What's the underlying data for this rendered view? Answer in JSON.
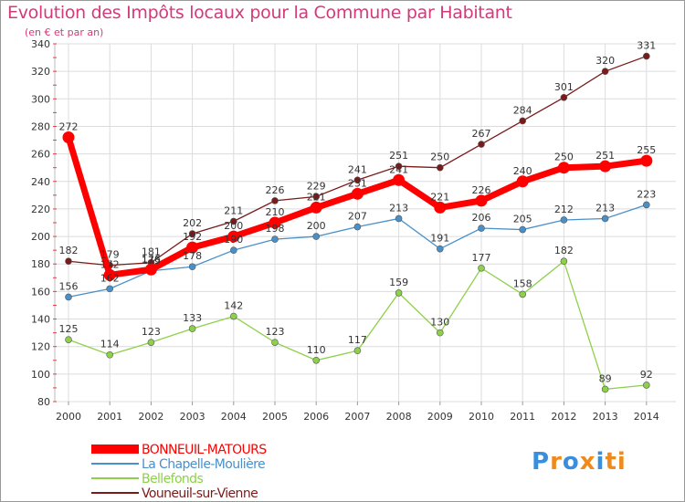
{
  "header": {
    "title": "Evolution des Impôts locaux pour la Commune par Habitant",
    "subtitle": "(en € et par an)"
  },
  "logo": {
    "text": "Proxiti",
    "letters": [
      "P",
      "r",
      "o",
      "x",
      "i",
      "t",
      "i"
    ],
    "colors": [
      "#3a8ede",
      "#f08a1c",
      "#3a8ede",
      "#f08a1c",
      "#3a8ede",
      "#f08a1c",
      "#f08a1c"
    ]
  },
  "chart_data": {
    "type": "line",
    "title": "Evolution des Impôts locaux pour la Commune par Habitant",
    "subtitle": "(en € et par an)",
    "x": [
      "2000",
      "2001",
      "2002",
      "2003",
      "2004",
      "2005",
      "2006",
      "2007",
      "2008",
      "2009",
      "2010",
      "2011",
      "2012",
      "2013",
      "2014"
    ],
    "ylim": [
      80,
      340
    ],
    "yticks": [
      80,
      100,
      120,
      140,
      160,
      180,
      200,
      220,
      240,
      260,
      280,
      300,
      320,
      340
    ],
    "grid": true,
    "legend": "bottom-left",
    "series": [
      {
        "name": "BONNEUIL-MATOURS",
        "color": "#ff0000",
        "values": [
          272,
          172,
          176,
          192,
          200,
          210,
          221,
          231,
          241,
          221,
          226,
          240,
          250,
          251,
          255
        ]
      },
      {
        "name": "La Chapelle-Moulière",
        "color": "#4a90c8",
        "values": [
          156,
          162,
          175,
          178,
          190,
          198,
          200,
          207,
          213,
          191,
          206,
          205,
          212,
          213,
          223
        ]
      },
      {
        "name": "Bellefonds",
        "color": "#8ed04a",
        "values": [
          125,
          114,
          123,
          133,
          142,
          123,
          110,
          117,
          159,
          130,
          177,
          158,
          182,
          89,
          92
        ]
      },
      {
        "name": "Vouneuil-sur-Vienne",
        "color": "#7a1a1a",
        "values": [
          182,
          179,
          181,
          202,
          211,
          226,
          229,
          241,
          251,
          250,
          267,
          284,
          301,
          320,
          331
        ]
      }
    ]
  }
}
